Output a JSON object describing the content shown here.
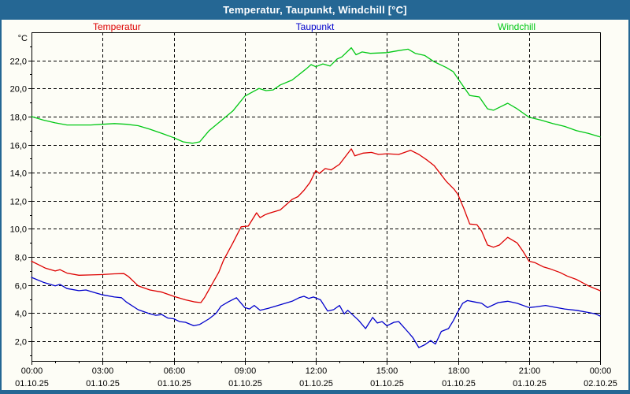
{
  "window": {
    "title": "Temperatur, Taupunkt, Windchill [°C]",
    "frame_color": "#256794"
  },
  "legend": [
    {
      "label": "Temperatur",
      "color": "#dd0000"
    },
    {
      "label": "Taupunkt",
      "color": "#0000cc"
    },
    {
      "label": "Windchill",
      "color": "#00c814"
    }
  ],
  "chart_data": {
    "type": "line",
    "title": "Temperatur, Taupunkt, Windchill [°C]",
    "ylabel": "°C",
    "y_unit_label": "°C",
    "xlim_hours": [
      0,
      24
    ],
    "ylim": [
      0.6,
      24.0
    ],
    "grid": "dashed-black",
    "legend_position": "top",
    "y_ticks": [
      {
        "value": 22,
        "label": "22,0"
      },
      {
        "value": 20,
        "label": "20,0"
      },
      {
        "value": 18,
        "label": "18,0"
      },
      {
        "value": 16,
        "label": "16,0"
      },
      {
        "value": 14,
        "label": "14,0"
      },
      {
        "value": 12,
        "label": "12,0"
      },
      {
        "value": 10,
        "label": "10,0"
      },
      {
        "value": 8,
        "label": "8,0"
      },
      {
        "value": 6,
        "label": "6,0"
      },
      {
        "value": 4,
        "label": "4,0"
      },
      {
        "value": 2,
        "label": "2,0"
      }
    ],
    "x_ticks": [
      {
        "hour": 0,
        "time": "00:00",
        "date": "01.10.25"
      },
      {
        "hour": 3,
        "time": "03:00",
        "date": "01.10.25"
      },
      {
        "hour": 6,
        "time": "06:00",
        "date": "01.10.25"
      },
      {
        "hour": 9,
        "time": "09:00",
        "date": "01.10.25"
      },
      {
        "hour": 12,
        "time": "12:00",
        "date": "01.10.25"
      },
      {
        "hour": 15,
        "time": "15:00",
        "date": "01.10.25"
      },
      {
        "hour": 18,
        "time": "18:00",
        "date": "01.10.25"
      },
      {
        "hour": 21,
        "time": "21:00",
        "date": "01.10.25"
      },
      {
        "hour": 24,
        "time": "00:00",
        "date": "02.10.25"
      }
    ],
    "minor_x_tick_every_hours": 1,
    "series": [
      {
        "name": "Temperatur",
        "color": "#dd0000",
        "points": [
          [
            0,
            7.7
          ],
          [
            0.3,
            7.45
          ],
          [
            0.6,
            7.2
          ],
          [
            1,
            7.0
          ],
          [
            1.2,
            7.1
          ],
          [
            1.5,
            6.85
          ],
          [
            2,
            6.7
          ],
          [
            2.5,
            6.72
          ],
          [
            3,
            6.75
          ],
          [
            3.5,
            6.8
          ],
          [
            3.9,
            6.82
          ],
          [
            4.1,
            6.6
          ],
          [
            4.5,
            5.95
          ],
          [
            5,
            5.65
          ],
          [
            5.5,
            5.5
          ],
          [
            6,
            5.2
          ],
          [
            6.5,
            4.95
          ],
          [
            6.9,
            4.8
          ],
          [
            7.15,
            4.75
          ],
          [
            7.3,
            5.1
          ],
          [
            7.6,
            6.0
          ],
          [
            7.9,
            6.9
          ],
          [
            8.1,
            7.75
          ],
          [
            8.5,
            9.0
          ],
          [
            8.85,
            10.15
          ],
          [
            9.15,
            10.2
          ],
          [
            9.5,
            11.15
          ],
          [
            9.65,
            10.8
          ],
          [
            9.85,
            11.0
          ],
          [
            10,
            11.1
          ],
          [
            10.5,
            11.35
          ],
          [
            11,
            12.1
          ],
          [
            11.25,
            12.3
          ],
          [
            11.5,
            12.75
          ],
          [
            11.75,
            13.3
          ],
          [
            12,
            14.15
          ],
          [
            12.15,
            13.95
          ],
          [
            12.4,
            14.3
          ],
          [
            12.65,
            14.2
          ],
          [
            13,
            14.6
          ],
          [
            13.5,
            15.7
          ],
          [
            13.65,
            15.2
          ],
          [
            14,
            15.4
          ],
          [
            14.35,
            15.45
          ],
          [
            14.65,
            15.3
          ],
          [
            15,
            15.35
          ],
          [
            15.5,
            15.3
          ],
          [
            16,
            15.6
          ],
          [
            16.35,
            15.3
          ],
          [
            16.7,
            14.9
          ],
          [
            17,
            14.5
          ],
          [
            17.5,
            13.4
          ],
          [
            17.85,
            12.8
          ],
          [
            18,
            12.45
          ],
          [
            18.25,
            11.45
          ],
          [
            18.5,
            10.35
          ],
          [
            18.8,
            10.3
          ],
          [
            19,
            9.85
          ],
          [
            19.25,
            8.85
          ],
          [
            19.5,
            8.7
          ],
          [
            19.75,
            8.85
          ],
          [
            20.1,
            9.4
          ],
          [
            20.5,
            9.0
          ],
          [
            20.75,
            8.4
          ],
          [
            21,
            7.7
          ],
          [
            21.25,
            7.6
          ],
          [
            21.6,
            7.3
          ],
          [
            21.9,
            7.15
          ],
          [
            22.3,
            6.9
          ],
          [
            22.6,
            6.65
          ],
          [
            23,
            6.4
          ],
          [
            23.5,
            5.95
          ],
          [
            24,
            5.6
          ]
        ]
      },
      {
        "name": "Taupunkt",
        "color": "#0000cc",
        "points": [
          [
            0,
            6.55
          ],
          [
            0.5,
            6.2
          ],
          [
            1,
            5.95
          ],
          [
            1.2,
            6.05
          ],
          [
            1.5,
            5.75
          ],
          [
            2,
            5.6
          ],
          [
            2.3,
            5.65
          ],
          [
            2.6,
            5.5
          ],
          [
            3,
            5.3
          ],
          [
            3.5,
            5.15
          ],
          [
            3.8,
            5.1
          ],
          [
            4,
            4.8
          ],
          [
            4.5,
            4.25
          ],
          [
            5,
            3.95
          ],
          [
            5.25,
            3.85
          ],
          [
            5.5,
            3.9
          ],
          [
            5.75,
            3.65
          ],
          [
            6,
            3.6
          ],
          [
            6.25,
            3.4
          ],
          [
            6.5,
            3.35
          ],
          [
            6.85,
            3.1
          ],
          [
            7.1,
            3.2
          ],
          [
            7.5,
            3.6
          ],
          [
            7.8,
            4.0
          ],
          [
            8,
            4.5
          ],
          [
            8.3,
            4.8
          ],
          [
            8.65,
            5.1
          ],
          [
            9,
            4.4
          ],
          [
            9.2,
            4.3
          ],
          [
            9.4,
            4.55
          ],
          [
            9.65,
            4.2
          ],
          [
            10,
            4.35
          ],
          [
            10.5,
            4.6
          ],
          [
            11,
            4.85
          ],
          [
            11.3,
            5.1
          ],
          [
            11.5,
            5.2
          ],
          [
            11.7,
            5.05
          ],
          [
            11.9,
            5.15
          ],
          [
            12.2,
            4.95
          ],
          [
            12.5,
            4.15
          ],
          [
            12.75,
            4.25
          ],
          [
            13,
            4.55
          ],
          [
            13.2,
            3.95
          ],
          [
            13.35,
            4.2
          ],
          [
            13.8,
            3.5
          ],
          [
            14.1,
            2.9
          ],
          [
            14.4,
            3.7
          ],
          [
            14.6,
            3.3
          ],
          [
            14.8,
            3.4
          ],
          [
            15,
            3.1
          ],
          [
            15.3,
            3.35
          ],
          [
            15.5,
            3.4
          ],
          [
            15.9,
            2.65
          ],
          [
            16.1,
            2.25
          ],
          [
            16.35,
            1.55
          ],
          [
            16.6,
            1.75
          ],
          [
            16.85,
            2.05
          ],
          [
            17.05,
            1.8
          ],
          [
            17.3,
            2.7
          ],
          [
            17.6,
            2.9
          ],
          [
            17.8,
            3.45
          ],
          [
            18,
            4.1
          ],
          [
            18.2,
            4.7
          ],
          [
            18.4,
            4.9
          ],
          [
            18.7,
            4.8
          ],
          [
            19,
            4.7
          ],
          [
            19.25,
            4.4
          ],
          [
            19.7,
            4.75
          ],
          [
            20.1,
            4.85
          ],
          [
            20.5,
            4.7
          ],
          [
            21,
            4.4
          ],
          [
            21.3,
            4.45
          ],
          [
            21.7,
            4.55
          ],
          [
            22,
            4.45
          ],
          [
            22.5,
            4.3
          ],
          [
            23,
            4.2
          ],
          [
            23.5,
            4.05
          ],
          [
            23.8,
            3.95
          ],
          [
            24,
            3.8
          ]
        ]
      },
      {
        "name": "Windchill",
        "color": "#00c814",
        "points": [
          [
            0,
            18.0
          ],
          [
            0.5,
            17.75
          ],
          [
            1,
            17.55
          ],
          [
            1.5,
            17.4
          ],
          [
            2,
            17.4
          ],
          [
            2.5,
            17.4
          ],
          [
            3,
            17.45
          ],
          [
            3.5,
            17.5
          ],
          [
            4,
            17.45
          ],
          [
            4.5,
            17.35
          ],
          [
            5,
            17.1
          ],
          [
            5.5,
            16.8
          ],
          [
            6,
            16.5
          ],
          [
            6.4,
            16.2
          ],
          [
            6.8,
            16.1
          ],
          [
            7.1,
            16.2
          ],
          [
            7.5,
            17.0
          ],
          [
            8,
            17.7
          ],
          [
            8.5,
            18.4
          ],
          [
            9,
            19.45
          ],
          [
            9.6,
            20.0
          ],
          [
            9.9,
            19.85
          ],
          [
            10.2,
            19.9
          ],
          [
            10.5,
            20.25
          ],
          [
            11,
            20.6
          ],
          [
            11.3,
            21.0
          ],
          [
            11.6,
            21.4
          ],
          [
            11.8,
            21.7
          ],
          [
            12,
            21.55
          ],
          [
            12.3,
            21.75
          ],
          [
            12.6,
            21.6
          ],
          [
            12.9,
            22.1
          ],
          [
            13.1,
            22.25
          ],
          [
            13.5,
            22.9
          ],
          [
            13.7,
            22.4
          ],
          [
            13.95,
            22.6
          ],
          [
            14.3,
            22.5
          ],
          [
            15,
            22.55
          ],
          [
            15.5,
            22.7
          ],
          [
            15.9,
            22.8
          ],
          [
            16.2,
            22.5
          ],
          [
            16.6,
            22.35
          ],
          [
            17,
            21.9
          ],
          [
            17.5,
            21.5
          ],
          [
            17.8,
            21.2
          ],
          [
            18,
            20.7
          ],
          [
            18.5,
            19.5
          ],
          [
            18.9,
            19.4
          ],
          [
            19.25,
            18.55
          ],
          [
            19.5,
            18.45
          ],
          [
            19.8,
            18.7
          ],
          [
            20.1,
            18.95
          ],
          [
            20.5,
            18.55
          ],
          [
            21,
            17.95
          ],
          [
            21.5,
            17.75
          ],
          [
            22,
            17.5
          ],
          [
            22.5,
            17.3
          ],
          [
            23,
            17.0
          ],
          [
            23.5,
            16.8
          ],
          [
            24,
            16.55
          ]
        ]
      }
    ]
  }
}
